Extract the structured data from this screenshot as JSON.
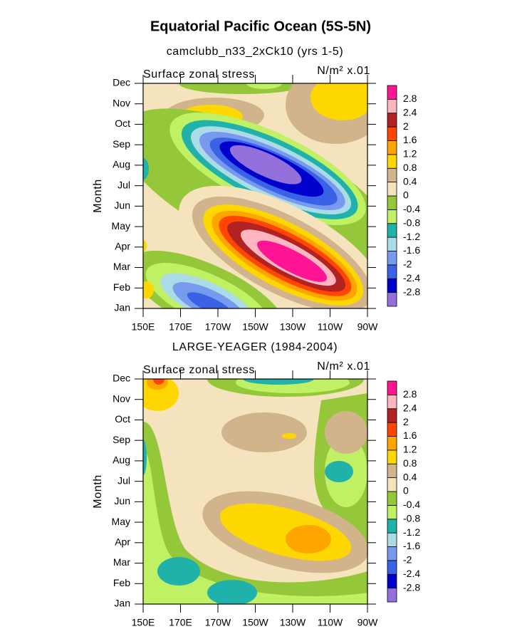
{
  "title": "Equatorial Pacific Ocean (5S-5N)",
  "chart_data": [
    {
      "type": "contour",
      "title": "camclubb_n33_2xCk10 (yrs 1-5)",
      "left_label": "Surface zonal stress",
      "right_label": "N/m² x.01",
      "ylabel": "Month",
      "categories": [
        "Jan",
        "Feb",
        "Mar",
        "Apr",
        "May",
        "Jun",
        "Jul",
        "Aug",
        "Sep",
        "Oct",
        "Nov",
        "Dec"
      ],
      "xlim": [
        150,
        270
      ],
      "xticks": [
        {
          "value": 150,
          "label": "150E"
        },
        {
          "value": 170,
          "label": "170E"
        },
        {
          "value": 190,
          "label": "170W"
        },
        {
          "value": 210,
          "label": "150W"
        },
        {
          "value": 230,
          "label": "130W"
        },
        {
          "value": 250,
          "label": "110W"
        },
        {
          "value": 270,
          "label": "90W"
        }
      ],
      "levels": [
        -2.8,
        -2.4,
        -2,
        -1.6,
        -1.2,
        -0.8,
        -0.4,
        0,
        0.4,
        0.8,
        1.2,
        1.6,
        2,
        2.4,
        2.8
      ],
      "colors": [
        "#9370db",
        "#0000cd",
        "#3a62e6",
        "#7799ee",
        "#aadbe6",
        "#20b2aa",
        "#c0f064",
        "#94c83a",
        "#f5e3bd",
        "#d2b48c",
        "#ffd700",
        "#ffa500",
        "#ff4500",
        "#b22222",
        "#ffb6c1",
        "#ff1493"
      ]
    },
    {
      "type": "contour",
      "title": "LARGE-YEAGER (1984-2004)",
      "left_label": "Surface zonal stress",
      "right_label": "N/m² x.01",
      "ylabel": "Month",
      "categories": [
        "Jan",
        "Feb",
        "Mar",
        "Apr",
        "May",
        "Jun",
        "Jul",
        "Aug",
        "Sep",
        "Oct",
        "Nov",
        "Dec"
      ],
      "xlim": [
        150,
        270
      ],
      "xticks": [
        {
          "value": 150,
          "label": "150E"
        },
        {
          "value": 170,
          "label": "170E"
        },
        {
          "value": 190,
          "label": "170W"
        },
        {
          "value": 210,
          "label": "150W"
        },
        {
          "value": 230,
          "label": "130W"
        },
        {
          "value": 250,
          "label": "110W"
        },
        {
          "value": 270,
          "label": "90W"
        }
      ],
      "levels": [
        -2.8,
        -2.4,
        -2,
        -1.6,
        -1.2,
        -0.8,
        -0.4,
        0,
        0.4,
        0.8,
        1.2,
        1.6,
        2,
        2.4,
        2.8
      ],
      "colors": [
        "#9370db",
        "#0000cd",
        "#3a62e6",
        "#7799ee",
        "#aadbe6",
        "#20b2aa",
        "#c0f064",
        "#94c83a",
        "#f5e3bd",
        "#d2b48c",
        "#ffd700",
        "#ffa500",
        "#ff4500",
        "#b22222",
        "#ffb6c1",
        "#ff1493"
      ]
    }
  ]
}
